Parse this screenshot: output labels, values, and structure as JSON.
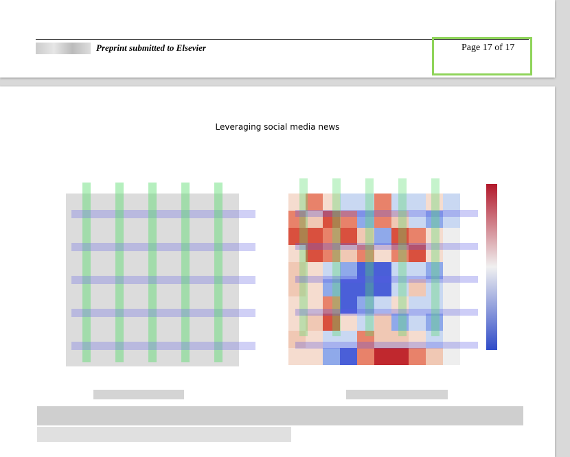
{
  "footer": {
    "journal": "Preprint submitted to Elsevier",
    "page": "Page 17 of 17"
  },
  "header": {
    "running_title": "Leveraging social media news"
  }
}
